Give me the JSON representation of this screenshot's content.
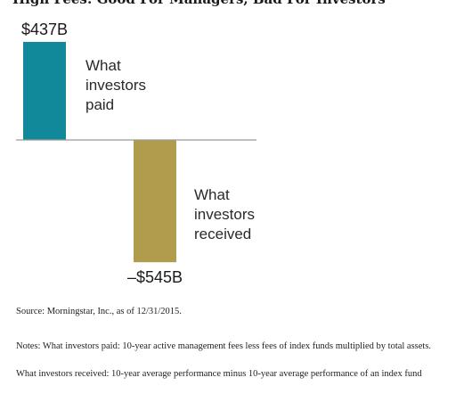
{
  "header": {
    "cropped_title": "High Fees: Good For Managers, Bad For Investors"
  },
  "chart_data": {
    "type": "bar",
    "categories": [
      "What investors paid",
      "What investors received"
    ],
    "values": [
      437,
      -545
    ],
    "value_labels": [
      "$437B",
      "–$545B"
    ],
    "category_lines": [
      [
        "What",
        "investors",
        "paid"
      ],
      [
        "What",
        "investors",
        "received"
      ]
    ],
    "colors": [
      "#12899a",
      "#b19c4e"
    ],
    "baseline_color": "#9a9a9a",
    "title": "",
    "xlabel": "",
    "ylabel": "",
    "ylim": [
      -545,
      437
    ],
    "grid": false,
    "legend": "none"
  },
  "footer": {
    "source": "Source: Morningstar, Inc., as of 12/31/2015.",
    "note_paid": "Notes: What investors paid: 10-year active management fees less fees of index funds multiplied by total assets.",
    "note_received": "What investors received: 10-year average performance minus 10-year average performance of an index fund"
  }
}
